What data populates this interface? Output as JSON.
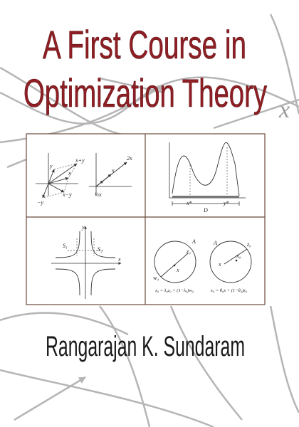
{
  "cover": {
    "title_lines": [
      "A First Course in",
      "Optimization Theory"
    ],
    "author": "Rangarajan K. Sundaram",
    "background_glyph": "x"
  },
  "panels": [
    {
      "labels": [
        "x+y",
        "y",
        "x",
        "x−y",
        "−y",
        "2x",
        "x",
        "½x"
      ]
    },
    {
      "labels": [
        "x*",
        "y*",
        "D"
      ]
    },
    {
      "labels": [
        "y",
        "S₁",
        "S₂",
        "x"
      ]
    },
    {
      "labels": [
        "A",
        "z₀",
        "x",
        "w₀",
        "x₀ = λ₀z₀ + (1−λ₀)w₀",
        "A",
        "z₀",
        "x",
        "x₀",
        "x₀ = θ₀x + (1−θ₀)z₀"
      ]
    }
  ]
}
